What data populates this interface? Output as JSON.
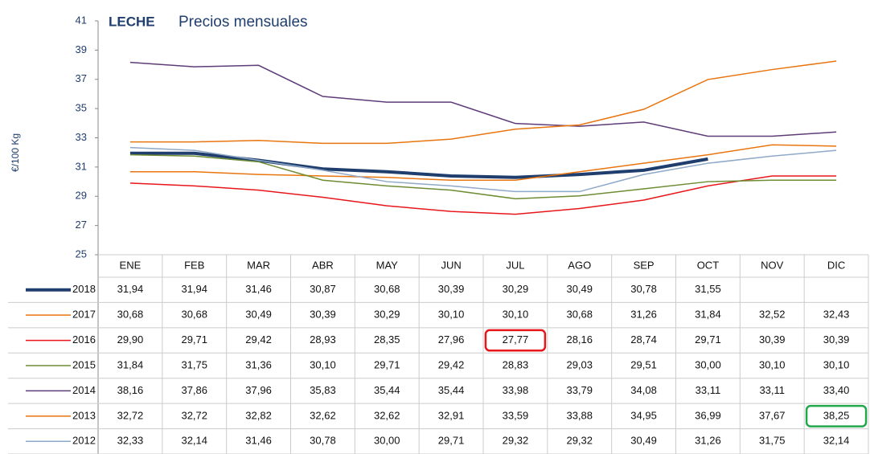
{
  "chart_data": {
    "type": "line",
    "title": "LECHE",
    "subtitle": "Precios mensuales",
    "y_label": "€/100 Kg",
    "categories": [
      "ENE",
      "FEB",
      "MAR",
      "ABR",
      "MAY",
      "JUN",
      "JUL",
      "AGO",
      "SEP",
      "OCT",
      "NOV",
      "DIC"
    ],
    "ylim": [
      25,
      41
    ],
    "yticks": [
      25,
      27,
      29,
      31,
      33,
      35,
      37,
      39,
      41
    ],
    "grid": false,
    "series": [
      {
        "name": "2018",
        "color": "#1f3e6e",
        "width": 4,
        "values": [
          31.94,
          31.94,
          31.46,
          30.87,
          30.68,
          30.39,
          30.29,
          30.49,
          30.78,
          31.55,
          null,
          null
        ],
        "value_labels": [
          "31,94",
          "31,94",
          "31,46",
          "30,87",
          "30,68",
          "30,39",
          "30,29",
          "30,49",
          "30,78",
          "31,55",
          null,
          null
        ]
      },
      {
        "name": "2017",
        "color": "#e8750f",
        "width": 1.5,
        "values": [
          30.68,
          30.68,
          30.49,
          30.39,
          30.29,
          30.1,
          30.1,
          30.68,
          31.26,
          31.84,
          32.52,
          32.43
        ],
        "value_labels": [
          "30,68",
          "30,68",
          "30,49",
          "30,39",
          "30,29",
          "30,10",
          "30,10",
          "30,68",
          "31,26",
          "31,84",
          "32,52",
          "32,43"
        ]
      },
      {
        "name": "2016",
        "color": "#e8161a",
        "width": 1.5,
        "values": [
          29.9,
          29.71,
          29.42,
          28.93,
          28.35,
          27.96,
          27.77,
          28.16,
          28.74,
          29.71,
          30.39,
          30.39
        ],
        "value_labels": [
          "29,90",
          "29,71",
          "29,42",
          "28,93",
          "28,35",
          "27,96",
          "27,77",
          "28,16",
          "28,74",
          "29,71",
          "30,39",
          "30,39"
        ]
      },
      {
        "name": "2015",
        "color": "#6e8c32",
        "width": 1.5,
        "values": [
          31.84,
          31.75,
          31.36,
          30.1,
          29.71,
          29.42,
          28.83,
          29.03,
          29.51,
          30.0,
          30.1,
          30.1
        ],
        "value_labels": [
          "31,84",
          "31,75",
          "31,36",
          "30,10",
          "29,71",
          "29,42",
          "28,83",
          "29,03",
          "29,51",
          "30,00",
          "30,10",
          "30,10"
        ]
      },
      {
        "name": "2014",
        "color": "#5e3c78",
        "width": 1.5,
        "values": [
          38.16,
          37.86,
          37.96,
          35.83,
          35.44,
          35.44,
          33.98,
          33.79,
          34.08,
          33.11,
          33.11,
          33.4
        ],
        "value_labels": [
          "38,16",
          "37,86",
          "37,96",
          "35,83",
          "35,44",
          "35,44",
          "33,98",
          "33,79",
          "34,08",
          "33,11",
          "33,11",
          "33,40"
        ]
      },
      {
        "name": "2013",
        "color": "#e8750f",
        "width": 1.5,
        "values": [
          32.72,
          32.72,
          32.82,
          32.62,
          32.62,
          32.91,
          33.59,
          33.88,
          34.95,
          36.99,
          37.67,
          38.25
        ],
        "value_labels": [
          "32,72",
          "32,72",
          "32,82",
          "32,62",
          "32,62",
          "32,91",
          "33,59",
          "33,88",
          "34,95",
          "36,99",
          "37,67",
          "38,25"
        ]
      },
      {
        "name": "2012",
        "color": "#8fa9c8",
        "width": 1.5,
        "values": [
          32.33,
          32.14,
          31.46,
          30.78,
          30.0,
          29.71,
          29.32,
          29.32,
          30.49,
          31.26,
          31.75,
          32.14
        ],
        "value_labels": [
          "32,33",
          "32,14",
          "31,46",
          "30,78",
          "30,00",
          "29,71",
          "29,32",
          "29,32",
          "30,49",
          "31,26",
          "31,75",
          "32,14"
        ]
      }
    ],
    "highlights": [
      {
        "series": 2,
        "index": 6,
        "color": "#e8161a"
      },
      {
        "series": 5,
        "index": 11,
        "color": "#22a84a"
      }
    ]
  }
}
